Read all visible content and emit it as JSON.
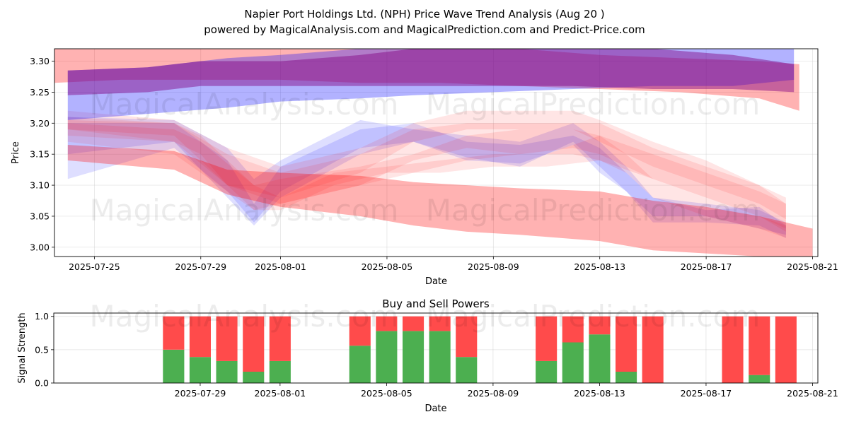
{
  "page_title": [
    "Napier Port Holdings Ltd. (NPH) Price Wave Trend Analysis (Aug 20 )",
    "powered by MagicalAnalysis.com and MagicalPrediction.com and Predict-Price.com"
  ],
  "watermarks": [
    "MagicalAnalysis.com",
    "MagicalPrediction.com"
  ],
  "colors": {
    "red_band": "#ff0000",
    "blue_band": "#0000ff",
    "purple_band": "#800080",
    "buy": "#4caf50",
    "sell": "#ff4b4b",
    "grid": "#cccccc"
  },
  "chart_data": [
    {
      "type": "area",
      "title": "",
      "xlabel": "Date",
      "ylabel": "Price",
      "x_range": [
        "2025-07-23.5",
        "2025-08-21.2"
      ],
      "ylim": [
        2.985,
        3.32
      ],
      "x_ticks": [
        "2025-07-25",
        "2025-07-29",
        "2025-08-01",
        "2025-08-05",
        "2025-08-09",
        "2025-08-13",
        "2025-08-17",
        "2025-08-21"
      ],
      "y_ticks": [
        "3.00",
        "3.05",
        "3.10",
        "3.15",
        "3.20",
        "3.25",
        "3.30"
      ],
      "series": [
        {
          "name": "blue-wave-1",
          "color": "#0000ff",
          "alpha": 0.13,
          "x": [
            "2025-07-24",
            "2025-07-28",
            "2025-07-30",
            "2025-07-31",
            "2025-08-01",
            "2025-08-04",
            "2025-08-06",
            "2025-08-08",
            "2025-08-10",
            "2025-08-12",
            "2025-08-13",
            "2025-08-14",
            "2025-08-15",
            "2025-08-17",
            "2025-08-19",
            "2025-08-20"
          ],
          "upper": [
            3.21,
            3.205,
            3.16,
            3.11,
            3.14,
            3.205,
            3.19,
            3.18,
            3.17,
            3.2,
            3.17,
            3.13,
            3.08,
            3.07,
            3.06,
            3.04
          ],
          "lower": [
            3.15,
            3.17,
            3.08,
            3.035,
            3.08,
            3.15,
            3.17,
            3.145,
            3.13,
            3.17,
            3.13,
            3.09,
            3.05,
            3.05,
            3.03,
            3.02
          ]
        },
        {
          "name": "blue-wave-2",
          "color": "#0000ff",
          "alpha": 0.13,
          "x": [
            "2025-07-24",
            "2025-07-28",
            "2025-07-30",
            "2025-07-31",
            "2025-08-01",
            "2025-08-04",
            "2025-08-06",
            "2025-08-08",
            "2025-08-10",
            "2025-08-12",
            "2025-08-13",
            "2025-08-14",
            "2025-08-15",
            "2025-08-17",
            "2025-08-19",
            "2025-08-20"
          ],
          "upper": [
            3.2,
            3.2,
            3.14,
            3.07,
            3.13,
            3.19,
            3.2,
            3.17,
            3.165,
            3.18,
            3.16,
            3.12,
            3.08,
            3.06,
            3.065,
            3.035
          ],
          "lower": [
            3.11,
            3.16,
            3.09,
            3.04,
            3.09,
            3.16,
            3.17,
            3.14,
            3.135,
            3.165,
            3.12,
            3.09,
            3.04,
            3.04,
            3.035,
            3.015
          ]
        },
        {
          "name": "red-wave-upper",
          "color": "#ff0000",
          "alpha": 0.1,
          "x": [
            "2025-07-24",
            "2025-07-28",
            "2025-07-30",
            "2025-08-01",
            "2025-08-04",
            "2025-08-06",
            "2025-08-08",
            "2025-08-10",
            "2025-08-12",
            "2025-08-13",
            "2025-08-15",
            "2025-08-17",
            "2025-08-19",
            "2025-08-20"
          ],
          "upper": [
            3.22,
            3.205,
            3.16,
            3.13,
            3.16,
            3.2,
            3.22,
            3.22,
            3.22,
            3.205,
            3.17,
            3.14,
            3.1,
            3.08
          ],
          "lower": [
            3.19,
            3.18,
            3.1,
            3.08,
            3.12,
            3.17,
            3.19,
            3.19,
            3.19,
            3.17,
            3.13,
            3.1,
            3.07,
            3.045
          ]
        },
        {
          "name": "red-wave-mid",
          "color": "#ff0000",
          "alpha": 0.1,
          "x": [
            "2025-07-24",
            "2025-07-28",
            "2025-07-30",
            "2025-08-01",
            "2025-08-04",
            "2025-08-06",
            "2025-08-08",
            "2025-08-10",
            "2025-08-12",
            "2025-08-13",
            "2025-08-15",
            "2025-08-17",
            "2025-08-19",
            "2025-08-20"
          ],
          "upper": [
            3.205,
            3.2,
            3.15,
            3.12,
            3.15,
            3.19,
            3.2,
            3.2,
            3.2,
            3.2,
            3.16,
            3.13,
            3.1,
            3.07
          ],
          "lower": [
            3.18,
            3.17,
            3.1,
            3.07,
            3.1,
            3.14,
            3.16,
            3.15,
            3.16,
            3.15,
            3.11,
            3.08,
            3.05,
            3.025
          ]
        },
        {
          "name": "red-wave-low",
          "color": "#ff0000",
          "alpha": 0.1,
          "x": [
            "2025-07-24",
            "2025-07-28",
            "2025-07-29",
            "2025-07-31",
            "2025-08-01",
            "2025-08-03",
            "2025-08-05",
            "2025-08-07",
            "2025-08-09",
            "2025-08-11",
            "2025-08-13",
            "2025-08-14",
            "2025-08-15",
            "2025-08-17",
            "2025-08-19",
            "2025-08-20"
          ],
          "upper": [
            3.2,
            3.19,
            3.17,
            3.1,
            3.08,
            3.12,
            3.13,
            3.14,
            3.15,
            3.15,
            3.18,
            3.15,
            3.11,
            3.08,
            3.05,
            3.035
          ],
          "lower": [
            3.17,
            3.15,
            3.12,
            3.06,
            3.06,
            3.1,
            3.12,
            3.12,
            3.13,
            3.13,
            3.14,
            3.12,
            3.08,
            3.05,
            3.03,
            3.015
          ]
        },
        {
          "name": "red-wave-down",
          "color": "#ff0000",
          "alpha": 0.1,
          "x": [
            "2025-07-24",
            "2025-07-28",
            "2025-07-29",
            "2025-07-30",
            "2025-07-31",
            "2025-08-01",
            "2025-08-04",
            "2025-08-06",
            "2025-08-08",
            "2025-08-10",
            "2025-08-12",
            "2025-08-13",
            "2025-08-15",
            "2025-08-17",
            "2025-08-19",
            "2025-08-20"
          ],
          "upper": [
            3.21,
            3.2,
            3.18,
            3.14,
            3.1,
            3.11,
            3.13,
            3.15,
            3.18,
            3.19,
            3.19,
            3.18,
            3.15,
            3.12,
            3.09,
            3.07
          ],
          "lower": [
            3.19,
            3.17,
            3.15,
            3.1,
            3.06,
            3.07,
            3.1,
            3.12,
            3.14,
            3.15,
            3.15,
            3.14,
            3.11,
            3.08,
            3.05,
            3.03
          ]
        },
        {
          "name": "red-trend-long",
          "color": "#ff0000",
          "alpha": 0.3,
          "x": [
            "2025-07-24",
            "2025-07-28",
            "2025-07-30",
            "2025-08-01",
            "2025-08-04",
            "2025-08-06",
            "2025-08-08",
            "2025-08-10",
            "2025-08-13",
            "2025-08-15",
            "2025-08-17",
            "2025-08-19",
            "2025-08-21"
          ],
          "upper": [
            3.165,
            3.155,
            3.125,
            3.12,
            3.115,
            3.105,
            3.1,
            3.095,
            3.09,
            3.075,
            3.065,
            3.05,
            3.03
          ],
          "lower": [
            3.14,
            3.125,
            3.085,
            3.065,
            3.05,
            3.035,
            3.025,
            3.02,
            3.01,
            2.995,
            2.99,
            2.985,
            2.985
          ]
        },
        {
          "name": "red-trend-top",
          "color": "#ff0000",
          "alpha": 0.3,
          "x": [
            "2025-07-23.5",
            "2025-07-26",
            "2025-07-29",
            "2025-08-01",
            "2025-08-04",
            "2025-08-07",
            "2025-08-10",
            "2025-08-13",
            "2025-08-16",
            "2025-08-19",
            "2025-08-20.5"
          ],
          "upper": [
            3.32,
            3.32,
            3.32,
            3.32,
            3.32,
            3.32,
            3.32,
            3.31,
            3.305,
            3.3,
            3.295
          ],
          "lower": [
            3.265,
            3.27,
            3.27,
            3.27,
            3.265,
            3.265,
            3.26,
            3.255,
            3.25,
            3.24,
            3.22
          ]
        },
        {
          "name": "blue-trend-top",
          "color": "#0000ff",
          "alpha": 0.3,
          "x": [
            "2025-07-24",
            "2025-07-27",
            "2025-07-30",
            "2025-08-01",
            "2025-08-04",
            "2025-08-06",
            "2025-08-09",
            "2025-08-12",
            "2025-08-15",
            "2025-08-18",
            "2025-08-20.3"
          ],
          "upper": [
            3.285,
            3.29,
            3.305,
            3.31,
            3.32,
            3.32,
            3.32,
            3.32,
            3.32,
            3.32,
            3.32
          ],
          "lower": [
            3.205,
            3.215,
            3.225,
            3.235,
            3.24,
            3.245,
            3.25,
            3.255,
            3.26,
            3.26,
            3.27
          ]
        },
        {
          "name": "purple-trend",
          "color": "#800080",
          "alpha": 0.45,
          "x": [
            "2025-07-24",
            "2025-07-27",
            "2025-07-29",
            "2025-08-01",
            "2025-08-04",
            "2025-08-06",
            "2025-08-09",
            "2025-08-12",
            "2025-08-15",
            "2025-08-18",
            "2025-08-20.3"
          ],
          "upper": [
            3.285,
            3.29,
            3.3,
            3.3,
            3.31,
            3.32,
            3.32,
            3.32,
            3.32,
            3.31,
            3.295
          ],
          "lower": [
            3.245,
            3.25,
            3.26,
            3.26,
            3.26,
            3.26,
            3.26,
            3.26,
            3.255,
            3.255,
            3.25
          ]
        }
      ]
    },
    {
      "type": "bar",
      "title": "Buy and Sell Powers",
      "xlabel": "Date",
      "ylabel": "Signal Strength",
      "x_range": [
        "2025-07-23.5",
        "2025-08-21.2"
      ],
      "ylim": [
        0,
        1.05
      ],
      "x_ticks": [
        "2025-07-29",
        "2025-08-01",
        "2025-08-05",
        "2025-08-09",
        "2025-08-13",
        "2025-08-17",
        "2025-08-21"
      ],
      "y_ticks": [
        "0.0",
        "0.5",
        "1.0"
      ],
      "categories": [
        "2025-07-28",
        "2025-07-29",
        "2025-07-30",
        "2025-07-31",
        "2025-08-01",
        "2025-08-04",
        "2025-08-05",
        "2025-08-06",
        "2025-08-07",
        "2025-08-08",
        "2025-08-11",
        "2025-08-12",
        "2025-08-13",
        "2025-08-14",
        "2025-08-15",
        "2025-08-18",
        "2025-08-19",
        "2025-08-20"
      ],
      "series": [
        {
          "name": "Buy",
          "color": "#4caf50",
          "values": [
            0.5,
            0.39,
            0.33,
            0.17,
            0.33,
            0.56,
            0.78,
            0.78,
            0.78,
            0.39,
            0.33,
            0.61,
            0.73,
            0.17,
            0.0,
            0.0,
            0.12,
            0.0
          ]
        },
        {
          "name": "Sell",
          "color": "#ff4b4b",
          "values": [
            0.5,
            0.61,
            0.67,
            0.83,
            0.67,
            0.44,
            0.22,
            0.22,
            0.22,
            0.61,
            0.67,
            0.39,
            0.27,
            0.83,
            1.0,
            1.0,
            0.88,
            1.0
          ]
        }
      ]
    }
  ]
}
